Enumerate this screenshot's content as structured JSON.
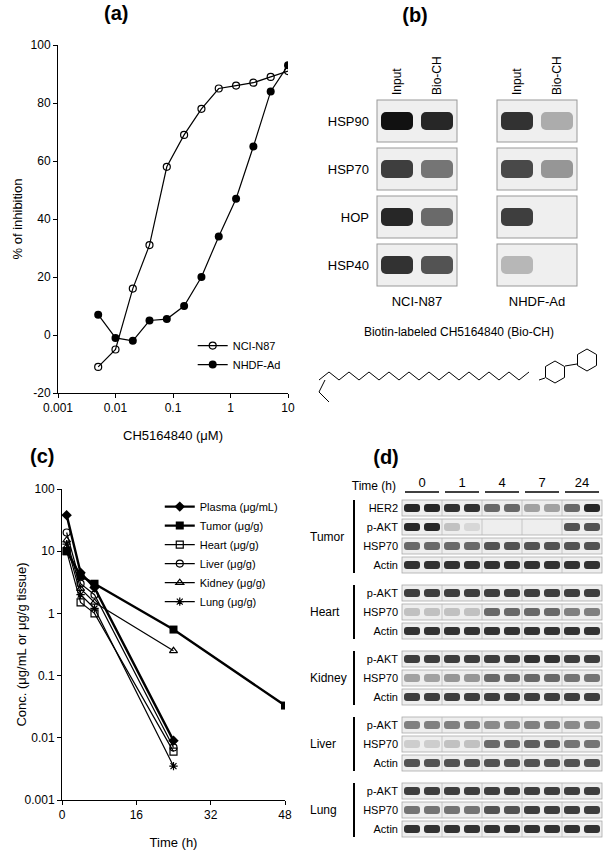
{
  "chart_data": [
    {
      "panel": "(a)",
      "type": "line",
      "x_label": "CH5164840 (μM)",
      "y_label": "% of inhibition",
      "log": "x",
      "xlim": [
        0.001,
        10
      ],
      "xticks": [
        0.001,
        0.01,
        0.1,
        1,
        10
      ],
      "ylim": [
        -20,
        100
      ],
      "yticks": [
        -20,
        0,
        20,
        40,
        60,
        80,
        100
      ],
      "grid": false,
      "legend": "lower right",
      "x": [
        0.005,
        0.01,
        0.02,
        0.039,
        0.078,
        0.156,
        0.3125,
        0.625,
        1.25,
        2.5,
        5,
        10
      ],
      "series": [
        {
          "name": "NCI-N87",
          "color": "#000000",
          "marker": "circle-open",
          "line_style": "solid",
          "values": [
            -11,
            -5,
            16,
            31,
            58,
            69,
            78,
            85,
            86,
            87,
            89,
            91
          ]
        },
        {
          "name": "NHDF-Ad",
          "color": "#000000",
          "marker": "circle",
          "line_style": "solid",
          "values": [
            7,
            -1,
            -2,
            5,
            5.5,
            10,
            20,
            34,
            47,
            65,
            84,
            93
          ]
        }
      ]
    },
    {
      "panel": "(c)",
      "type": "line",
      "x_label": "Time (h)",
      "y_label": "Conc. (μg/mL or μg/g tissue)",
      "log": "y",
      "xlim": [
        0,
        48
      ],
      "xticks": [
        0,
        16,
        32,
        48
      ],
      "ylim": [
        0.001,
        100
      ],
      "yticks": [
        0.001,
        0.01,
        0.1,
        1,
        10,
        100
      ],
      "grid": false,
      "legend": "upper right",
      "series": [
        {
          "name": "Plasma (μg/mL)",
          "color": "#000000",
          "marker": "diamond",
          "line_style": "thick",
          "x": [
            1,
            4,
            7,
            24
          ],
          "values": [
            38,
            4.5,
            2.6,
            0.009
          ]
        },
        {
          "name": "Tumor (μg/g)",
          "color": "#000000",
          "marker": "square",
          "line_style": "thick",
          "x": [
            1,
            4,
            7,
            24,
            48
          ],
          "values": [
            10,
            4,
            3,
            0.55,
            0.033
          ]
        },
        {
          "name": "Heart (μg/g)",
          "color": "#000000",
          "marker": "square-open",
          "line_style": "solid",
          "x": [
            1,
            4,
            7,
            24
          ],
          "values": [
            10,
            1.5,
            1.0,
            0.006
          ]
        },
        {
          "name": "Liver (μg/g)",
          "color": "#000000",
          "marker": "circle-open",
          "line_style": "solid",
          "x": [
            1,
            4,
            7,
            24
          ],
          "values": [
            20,
            3,
            2,
            0.007
          ]
        },
        {
          "name": "Kidney (μg/g)",
          "color": "#000000",
          "marker": "triangle-up-open",
          "line_style": "solid",
          "x": [
            1,
            4,
            7,
            24
          ],
          "values": [
            15,
            2.5,
            1.5,
            0.25
          ]
        },
        {
          "name": "Lung (μg/g)",
          "color": "#000000",
          "marker": "asterisk-open",
          "line_style": "solid",
          "x": [
            1,
            4,
            7,
            24
          ],
          "values": [
            13,
            2,
            1.2,
            0.0035
          ]
        }
      ]
    }
  ],
  "blots": {
    "b": {
      "panel": "(b)",
      "lanes": [
        "Input",
        "Bio-CH"
      ],
      "proteins": [
        "HSP90",
        "HSP70",
        "HOP",
        "HSP40"
      ],
      "groups": [
        {
          "name": "NCI-N87",
          "bands": [
            [
              1,
              0.9
            ],
            [
              0.8,
              0.55
            ],
            [
              0.9,
              0.6
            ],
            [
              0.85,
              0.7
            ]
          ]
        },
        {
          "name": "NHDF-Ad",
          "bands": [
            [
              0.85,
              0.3
            ],
            [
              0.75,
              0.4
            ],
            [
              0.8,
              0
            ],
            [
              0.25,
              0
            ]
          ]
        }
      ],
      "caption": "Biotin-labeled CH5164840 (Bio-CH)"
    },
    "d": {
      "panel": "(d)",
      "time_label": "Time (h)",
      "times": [
        "0",
        "1",
        "4",
        "7",
        "24"
      ],
      "lanes_per_time": 2,
      "tissues": [
        {
          "name": "Tumor",
          "rows": [
            {
              "protein": "HER2",
              "bands": [
                0.9,
                0.9,
                0.85,
                0.85,
                0.6,
                0.6,
                0.35,
                0.35,
                0.6,
                0.9
              ]
            },
            {
              "protein": "p-AKT",
              "bands": [
                0.9,
                0.9,
                0.2,
                0.1,
                0,
                0,
                0,
                0,
                0.7,
                0.7
              ]
            },
            {
              "protein": "HSP70",
              "bands": [
                0.6,
                0.6,
                0.6,
                0.6,
                0.7,
                0.7,
                0.7,
                0.7,
                0.7,
                0.7
              ]
            },
            {
              "protein": "Actin",
              "bands": [
                0.85,
                0.85,
                0.85,
                0.85,
                0.85,
                0.85,
                0.85,
                0.85,
                0.85,
                0.85
              ]
            }
          ]
        },
        {
          "name": "Heart",
          "rows": [
            {
              "protein": "p-AKT",
              "bands": [
                0.8,
                0.8,
                0.8,
                0.8,
                0.8,
                0.8,
                0.8,
                0.8,
                0.8,
                0.8
              ]
            },
            {
              "protein": "HSP70",
              "bands": [
                0.2,
                0.2,
                0.2,
                0.2,
                0.6,
                0.6,
                0.6,
                0.6,
                0.5,
                0.5
              ]
            },
            {
              "protein": "Actin",
              "bands": [
                0.85,
                0.85,
                0.85,
                0.85,
                0.85,
                0.85,
                0.85,
                0.85,
                0.85,
                0.85
              ]
            }
          ]
        },
        {
          "name": "Kidney",
          "rows": [
            {
              "protein": "p-AKT",
              "bands": [
                0.8,
                0.8,
                0.8,
                0.8,
                0.8,
                0.8,
                0.85,
                0.85,
                0.8,
                0.8
              ]
            },
            {
              "protein": "HSP70",
              "bands": [
                0.35,
                0.35,
                0.4,
                0.4,
                0.6,
                0.6,
                0.6,
                0.6,
                0.55,
                0.55
              ]
            },
            {
              "protein": "Actin",
              "bands": [
                0.8,
                0.8,
                0.8,
                0.8,
                0.8,
                0.8,
                0.8,
                0.8,
                0.8,
                0.8
              ]
            }
          ]
        },
        {
          "name": "Liver",
          "rows": [
            {
              "protein": "p-AKT",
              "bands": [
                0.5,
                0.5,
                0.5,
                0.5,
                0.45,
                0.45,
                0.5,
                0.5,
                0.45,
                0.45
              ]
            },
            {
              "protein": "HSP70",
              "bands": [
                0.15,
                0.15,
                0.2,
                0.2,
                0.6,
                0.6,
                0.65,
                0.65,
                0.55,
                0.55
              ]
            },
            {
              "protein": "Actin",
              "bands": [
                0.7,
                0.7,
                0.7,
                0.7,
                0.7,
                0.7,
                0.7,
                0.7,
                0.7,
                0.7
              ]
            }
          ]
        },
        {
          "name": "Lung",
          "rows": [
            {
              "protein": "p-AKT",
              "bands": [
                0.8,
                0.8,
                0.8,
                0.8,
                0.8,
                0.8,
                0.8,
                0.8,
                0.8,
                0.8
              ]
            },
            {
              "protein": "HSP70",
              "bands": [
                0.55,
                0.55,
                0.55,
                0.55,
                0.7,
                0.7,
                0.8,
                0.8,
                0.8,
                0.8
              ]
            },
            {
              "protein": "Actin",
              "bands": [
                0.85,
                0.85,
                0.85,
                0.85,
                0.85,
                0.85,
                0.85,
                0.85,
                0.85,
                0.85
              ]
            }
          ]
        }
      ]
    }
  }
}
